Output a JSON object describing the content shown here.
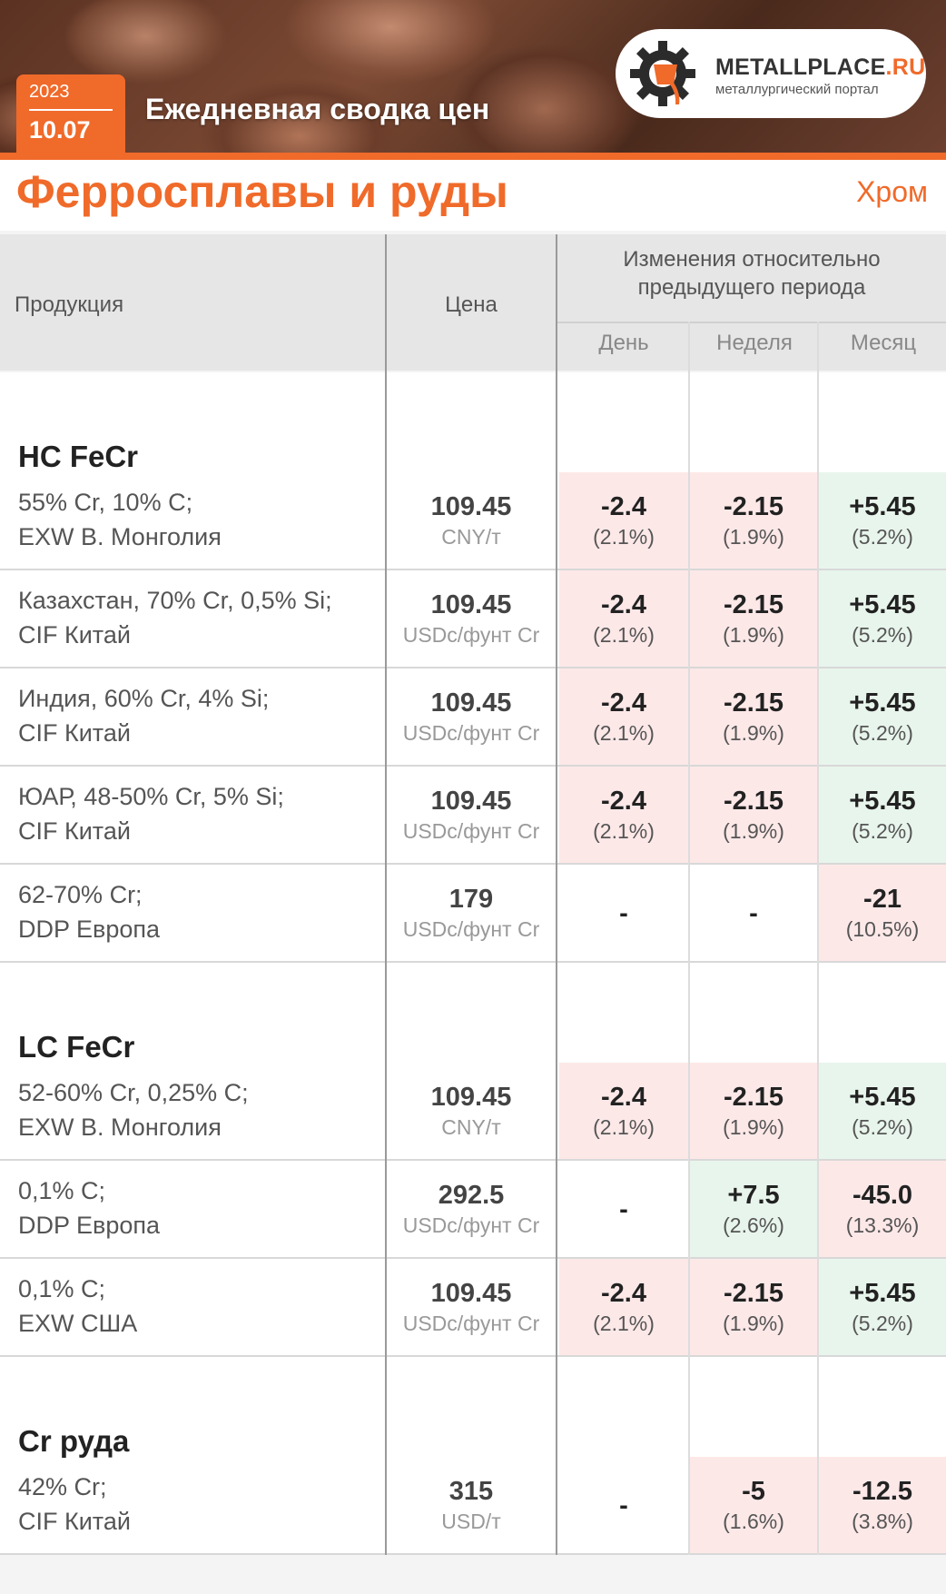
{
  "banner": {
    "year": "2023",
    "date": "10.07",
    "title": "Ежедневная сводка цен"
  },
  "logo": {
    "name_a": "METALL",
    "name_b": "PLACE",
    "name_c": ".RU",
    "subtitle": "металлургический портал",
    "icon": "gear-ladle-icon"
  },
  "section": {
    "title": "Ферросплавы и руды",
    "tag": "Хром"
  },
  "colors": {
    "accent": "#f06a2a",
    "negative_bg": "#fde8e8",
    "positive_bg": "#e8f5ec"
  },
  "header": {
    "product": "Продукция",
    "price": "Цена",
    "changes": [
      "Изменения относительно",
      "предыдущего периода"
    ],
    "day": "День",
    "week": "Неделя",
    "month": "Месяц"
  },
  "groups": [
    {
      "title": "HC FeCr",
      "rows": [
        {
          "line1": "55% Cr, 10% C;",
          "line2": "EXW В. Монголия",
          "price": "109.45",
          "unit": "CNY/т",
          "day": {
            "v": "-2.4",
            "p": "(2.1%)",
            "t": "neg"
          },
          "week": {
            "v": "-2.15",
            "p": "(1.9%)",
            "t": "neg"
          },
          "month": {
            "v": "+5.45",
            "p": "(5.2%)",
            "t": "pos"
          }
        },
        {
          "line1": "Казахстан, 70% Cr, 0,5% Si;",
          "line2": "CIF Китай",
          "price": "109.45",
          "unit": "USDc/фунт Cr",
          "day": {
            "v": "-2.4",
            "p": "(2.1%)",
            "t": "neg"
          },
          "week": {
            "v": "-2.15",
            "p": "(1.9%)",
            "t": "neg"
          },
          "month": {
            "v": "+5.45",
            "p": "(5.2%)",
            "t": "pos"
          }
        },
        {
          "line1": "Индия, 60% Cr, 4% Si;",
          "line2": "CIF Китай",
          "price": "109.45",
          "unit": "USDc/фунт Cr",
          "day": {
            "v": "-2.4",
            "p": "(2.1%)",
            "t": "neg"
          },
          "week": {
            "v": "-2.15",
            "p": "(1.9%)",
            "t": "neg"
          },
          "month": {
            "v": "+5.45",
            "p": "(5.2%)",
            "t": "pos"
          }
        },
        {
          "line1": "ЮАР, 48-50% Cr, 5% Si;",
          "line2": "CIF Китай",
          "price": "109.45",
          "unit": "USDc/фунт Cr",
          "day": {
            "v": "-2.4",
            "p": "(2.1%)",
            "t": "neg"
          },
          "week": {
            "v": "-2.15",
            "p": "(1.9%)",
            "t": "neg"
          },
          "month": {
            "v": "+5.45",
            "p": "(5.2%)",
            "t": "pos"
          }
        },
        {
          "line1": "62-70% Cr;",
          "line2": "DDP Европа",
          "price": "179",
          "unit": "USDc/фунт Cr",
          "day": {
            "v": "-",
            "p": "",
            "t": "none"
          },
          "week": {
            "v": "-",
            "p": "",
            "t": "none"
          },
          "month": {
            "v": "-21",
            "p": "(10.5%)",
            "t": "neg"
          }
        }
      ]
    },
    {
      "title": "LC FeCr",
      "rows": [
        {
          "line1": "52-60% Cr, 0,25% C;",
          "line2": "EXW В. Монголия",
          "price": "109.45",
          "unit": "CNY/т",
          "day": {
            "v": "-2.4",
            "p": "(2.1%)",
            "t": "neg"
          },
          "week": {
            "v": "-2.15",
            "p": "(1.9%)",
            "t": "neg"
          },
          "month": {
            "v": "+5.45",
            "p": "(5.2%)",
            "t": "pos"
          }
        },
        {
          "line1": "0,1% C;",
          "line2": "DDP Европа",
          "price": "292.5",
          "unit": "USDc/фунт Cr",
          "day": {
            "v": "-",
            "p": "",
            "t": "none"
          },
          "week": {
            "v": "+7.5",
            "p": "(2.6%)",
            "t": "pos"
          },
          "month": {
            "v": "-45.0",
            "p": "(13.3%)",
            "t": "neg"
          }
        },
        {
          "line1": "0,1% C;",
          "line2": "EXW США",
          "price": "109.45",
          "unit": "USDc/фунт Cr",
          "day": {
            "v": "-2.4",
            "p": "(2.1%)",
            "t": "neg"
          },
          "week": {
            "v": "-2.15",
            "p": "(1.9%)",
            "t": "neg"
          },
          "month": {
            "v": "+5.45",
            "p": "(5.2%)",
            "t": "pos"
          }
        }
      ]
    },
    {
      "title": "Cr руда",
      "rows": [
        {
          "line1": "42% Cr;",
          "line2": "CIF Китай",
          "price": "315",
          "unit": "USD/т",
          "day": {
            "v": "-",
            "p": "",
            "t": "none"
          },
          "week": {
            "v": "-5",
            "p": "(1.6%)",
            "t": "neg"
          },
          "month": {
            "v": "-12.5",
            "p": "(3.8%)",
            "t": "neg"
          }
        }
      ]
    }
  ]
}
